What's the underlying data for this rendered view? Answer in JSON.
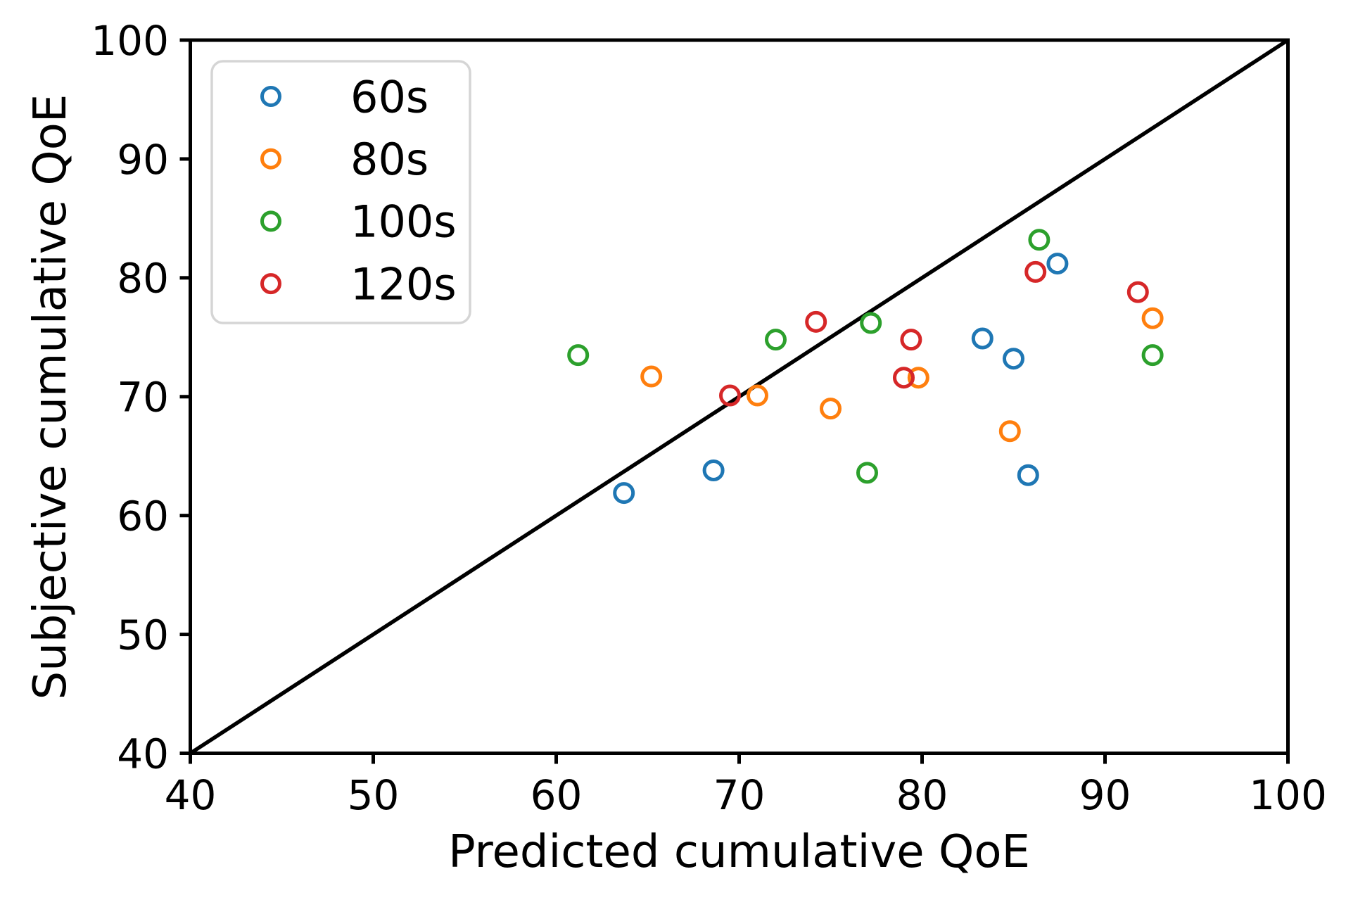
{
  "chart_data": {
    "type": "scatter",
    "title": "",
    "xlabel": "Predicted cumulative QoE",
    "ylabel": "Subjective cumulative QoE",
    "xlim": [
      40,
      100
    ],
    "ylim": [
      40,
      100
    ],
    "xticks": [
      40,
      50,
      60,
      70,
      80,
      90,
      100
    ],
    "yticks": [
      40,
      50,
      60,
      70,
      80,
      90,
      100
    ],
    "grid": false,
    "legend_position": "upper-left",
    "marker_style": "open-circle",
    "axis_color": "#000000",
    "identity_line": {
      "from": [
        40,
        40
      ],
      "to": [
        100,
        100
      ],
      "color": "#000000"
    },
    "series": [
      {
        "name": "60s",
        "color": "#1f77b4",
        "points": [
          [
            63.7,
            61.9
          ],
          [
            68.6,
            63.8
          ],
          [
            83.3,
            74.9
          ],
          [
            85.0,
            73.2
          ],
          [
            85.8,
            63.4
          ],
          [
            87.4,
            81.2
          ]
        ]
      },
      {
        "name": "80s",
        "color": "#ff7f0e",
        "points": [
          [
            65.2,
            71.7
          ],
          [
            71.0,
            70.1
          ],
          [
            75.0,
            69.0
          ],
          [
            79.8,
            71.6
          ],
          [
            84.8,
            67.1
          ],
          [
            92.6,
            76.6
          ]
        ]
      },
      {
        "name": "100s",
        "color": "#2ca02c",
        "points": [
          [
            61.2,
            73.5
          ],
          [
            72.0,
            74.8
          ],
          [
            77.2,
            76.2
          ],
          [
            77.0,
            63.6
          ],
          [
            86.4,
            83.2
          ],
          [
            92.6,
            73.5
          ]
        ]
      },
      {
        "name": "120s",
        "color": "#d62728",
        "points": [
          [
            69.5,
            70.1
          ],
          [
            74.2,
            76.3
          ],
          [
            79.4,
            74.8
          ],
          [
            79.0,
            71.6
          ],
          [
            86.2,
            80.5
          ],
          [
            91.8,
            78.8
          ]
        ]
      }
    ]
  }
}
